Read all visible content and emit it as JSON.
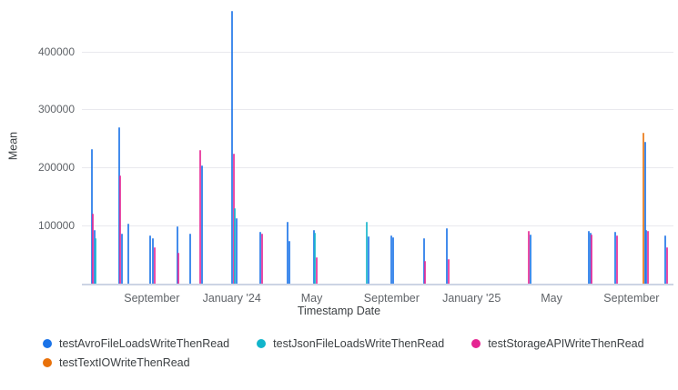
{
  "chart": {
    "y_axis_title": "Mean",
    "x_axis_title": "Timestamp Date"
  },
  "chart_data": {
    "type": "line",
    "mark_style": "vertical-spikes",
    "title": "",
    "xlabel": "Timestamp Date",
    "ylabel": "Mean",
    "grid": true,
    "legend_position": "bottom",
    "background": "#ffffff",
    "gridline_color": "#e9e9ee",
    "axis_line_color": "#ccd4e4",
    "x_domain": [
      "2023-05-16",
      "2025-11-04"
    ],
    "ylim": [
      0,
      473000
    ],
    "y_ticks": [
      100000,
      200000,
      300000,
      400000
    ],
    "x_ticks": [
      {
        "label": "September",
        "date": "2023-09-01"
      },
      {
        "label": "January '24",
        "date": "2024-01-01"
      },
      {
        "label": "May",
        "date": "2024-05-01"
      },
      {
        "label": "September",
        "date": "2024-09-01"
      },
      {
        "label": "January '25",
        "date": "2025-01-01"
      },
      {
        "label": "May",
        "date": "2025-05-01"
      },
      {
        "label": "September",
        "date": "2025-09-01"
      }
    ],
    "series": [
      {
        "key": "avro",
        "name": "testAvroFileLoadsWriteThenRead",
        "color": "#1a73e8"
      },
      {
        "key": "json",
        "name": "testJsonFileLoadsWriteThenRead",
        "color": "#12b5cb"
      },
      {
        "key": "storage",
        "name": "testStorageAPIWriteThenRead",
        "color": "#e52592"
      },
      {
        "key": "textio",
        "name": "testTextIOWriteThenRead",
        "color": "#e8710a"
      }
    ],
    "spikes": [
      {
        "date": "2023-06-01",
        "points": [
          {
            "series": "avro",
            "mean": 232000
          },
          {
            "series": "storage",
            "mean": 121000
          },
          {
            "series": "avro",
            "mean": 93000
          },
          {
            "series": "json",
            "mean": 79000
          }
        ]
      },
      {
        "date": "2023-07-12",
        "points": [
          {
            "series": "avro",
            "mean": 269000
          },
          {
            "series": "storage",
            "mean": 187000
          },
          {
            "series": "avro",
            "mean": 86000
          }
        ]
      },
      {
        "date": "2023-07-25",
        "points": [
          {
            "series": "avro",
            "mean": 104000
          }
        ]
      },
      {
        "date": "2023-08-28",
        "points": [
          {
            "series": "avro",
            "mean": 83000
          }
        ]
      },
      {
        "date": "2023-09-03",
        "points": [
          {
            "series": "avro",
            "mean": 79000
          },
          {
            "series": "storage",
            "mean": 62000
          }
        ]
      },
      {
        "date": "2023-10-09",
        "points": [
          {
            "series": "avro",
            "mean": 99000
          },
          {
            "series": "storage",
            "mean": 53000
          }
        ]
      },
      {
        "date": "2023-10-28",
        "points": [
          {
            "series": "avro",
            "mean": 86000
          }
        ]
      },
      {
        "date": "2023-11-14",
        "points": [
          {
            "series": "storage",
            "mean": 231000
          },
          {
            "series": "avro",
            "mean": 203000
          }
        ]
      },
      {
        "date": "2024-01-02",
        "points": [
          {
            "series": "avro",
            "mean": 470000
          },
          {
            "series": "storage",
            "mean": 224000
          },
          {
            "series": "json",
            "mean": 130000
          },
          {
            "series": "avro",
            "mean": 113000
          }
        ]
      },
      {
        "date": "2024-02-14",
        "points": [
          {
            "series": "avro",
            "mean": 89000
          },
          {
            "series": "storage",
            "mean": 86000
          }
        ]
      },
      {
        "date": "2024-03-25",
        "points": [
          {
            "series": "avro",
            "mean": 106000
          },
          {
            "series": "avro",
            "mean": 74000
          }
        ]
      },
      {
        "date": "2024-05-04",
        "points": [
          {
            "series": "avro",
            "mean": 92000
          },
          {
            "series": "json",
            "mean": 87000
          },
          {
            "series": "storage",
            "mean": 46000
          }
        ]
      },
      {
        "date": "2024-07-24",
        "points": [
          {
            "series": "json",
            "mean": 107000
          },
          {
            "series": "avro",
            "mean": 82000
          }
        ]
      },
      {
        "date": "2024-09-01",
        "points": [
          {
            "series": "avro",
            "mean": 83000
          },
          {
            "series": "avro",
            "mean": 80000
          }
        ]
      },
      {
        "date": "2024-10-19",
        "points": [
          {
            "series": "avro",
            "mean": 79000
          },
          {
            "series": "storage",
            "mean": 39000
          }
        ]
      },
      {
        "date": "2024-11-24",
        "points": [
          {
            "series": "avro",
            "mean": 95000
          },
          {
            "series": "storage",
            "mean": 42000
          }
        ]
      },
      {
        "date": "2025-03-27",
        "points": [
          {
            "series": "storage",
            "mean": 91000
          },
          {
            "series": "avro",
            "mean": 84000
          }
        ]
      },
      {
        "date": "2025-06-27",
        "points": [
          {
            "series": "avro",
            "mean": 91000
          },
          {
            "series": "avro",
            "mean": 88000
          },
          {
            "series": "storage",
            "mean": 84000
          }
        ]
      },
      {
        "date": "2025-08-07",
        "points": [
          {
            "series": "avro",
            "mean": 89000
          },
          {
            "series": "storage",
            "mean": 83000
          }
        ]
      },
      {
        "date": "2025-09-19",
        "points": [
          {
            "series": "textio",
            "mean": 260000
          },
          {
            "series": "avro",
            "mean": 245000
          },
          {
            "series": "avro",
            "mean": 92000
          },
          {
            "series": "storage",
            "mean": 91000
          }
        ]
      },
      {
        "date": "2025-10-22",
        "points": [
          {
            "series": "avro",
            "mean": 83000
          },
          {
            "series": "storage",
            "mean": 63000
          }
        ]
      }
    ]
  }
}
